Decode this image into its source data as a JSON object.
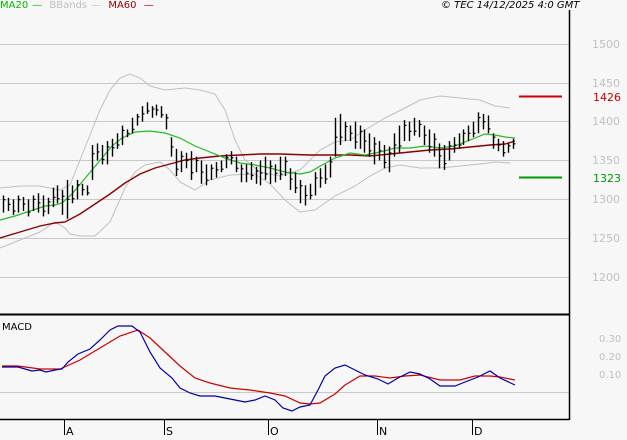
{
  "legend": [
    {
      "label": "MA20",
      "color": "#00bb00"
    },
    {
      "label": "BBands",
      "color": "#c0c0c0"
    },
    {
      "label": "MA60",
      "color": "#990000"
    }
  ],
  "copyright": "© TEC 14/12/2025 4:0 GMT",
  "colors": {
    "background": "#f7f7f7",
    "grid": "#c8c8c8",
    "bars": "#000000",
    "ma20": "#22bb22",
    "ma60": "#8b0000",
    "bbands": "#c0c0c0",
    "resistance": "#cc0000",
    "support": "#009900",
    "macd": "#0000aa",
    "signal": "#cc0000"
  },
  "price_axis": {
    "ticks": [
      "1500",
      "1450",
      "1400",
      "1350",
      "1300",
      "1250",
      "1200"
    ]
  },
  "levels": {
    "resistance": {
      "label": "1426",
      "value": 1426
    },
    "support": {
      "label": "1323",
      "value": 1323
    }
  },
  "macd_panel": {
    "title": "MACD",
    "ticks": [
      "0.30",
      "0.20",
      "0.10"
    ]
  },
  "x_axis": {
    "months": [
      "A",
      "S",
      "O",
      "N",
      "D"
    ]
  },
  "chart_data": {
    "type": "ohlc",
    "title": "",
    "xlabel": "",
    "ylabel": "",
    "ylim": [
      1165,
      1525
    ],
    "x_tick_labels": [
      "A",
      "S",
      "O",
      "N",
      "D"
    ],
    "legend": [
      "MA20",
      "BBands",
      "MA60"
    ],
    "horizontal_levels": [
      {
        "name": "resistance",
        "value": 1426
      },
      {
        "name": "support",
        "value": 1323
      }
    ],
    "bars_high_low": [
      [
        1305,
        1283
      ],
      [
        1302,
        1285
      ],
      [
        1300,
        1280
      ],
      [
        1305,
        1283
      ],
      [
        1303,
        1285
      ],
      [
        1300,
        1278
      ],
      [
        1305,
        1285
      ],
      [
        1308,
        1283
      ],
      [
        1305,
        1278
      ],
      [
        1302,
        1281
      ],
      [
        1315,
        1290
      ],
      [
        1318,
        1295
      ],
      [
        1312,
        1280
      ],
      [
        1325,
        1275
      ],
      [
        1318,
        1295
      ],
      [
        1325,
        1300
      ],
      [
        1320,
        1305
      ],
      [
        1318,
        1305
      ],
      [
        1370,
        1325
      ],
      [
        1372,
        1350
      ],
      [
        1370,
        1345
      ],
      [
        1375,
        1345
      ],
      [
        1378,
        1355
      ],
      [
        1385,
        1365
      ],
      [
        1395,
        1370
      ],
      [
        1390,
        1380
      ],
      [
        1405,
        1385
      ],
      [
        1410,
        1395
      ],
      [
        1420,
        1400
      ],
      [
        1425,
        1410
      ],
      [
        1420,
        1405
      ],
      [
        1422,
        1408
      ],
      [
        1420,
        1405
      ],
      [
        1410,
        1390
      ],
      [
        1380,
        1355
      ],
      [
        1365,
        1330
      ],
      [
        1362,
        1335
      ],
      [
        1360,
        1340
      ],
      [
        1362,
        1325
      ],
      [
        1355,
        1335
      ],
      [
        1350,
        1320
      ],
      [
        1345,
        1318
      ],
      [
        1345,
        1325
      ],
      [
        1348,
        1328
      ],
      [
        1350,
        1335
      ],
      [
        1358,
        1340
      ],
      [
        1362,
        1345
      ],
      [
        1355,
        1335
      ],
      [
        1345,
        1322
      ],
      [
        1345,
        1322
      ],
      [
        1348,
        1325
      ],
      [
        1342,
        1320
      ],
      [
        1350,
        1318
      ],
      [
        1355,
        1325
      ],
      [
        1350,
        1320
      ],
      [
        1345,
        1322
      ],
      [
        1355,
        1325
      ],
      [
        1355,
        1330
      ],
      [
        1340,
        1312
      ],
      [
        1335,
        1308
      ],
      [
        1325,
        1295
      ],
      [
        1318,
        1292
      ],
      [
        1320,
        1300
      ],
      [
        1335,
        1305
      ],
      [
        1340,
        1315
      ],
      [
        1345,
        1320
      ],
      [
        1355,
        1328
      ],
      [
        1405,
        1355
      ],
      [
        1410,
        1370
      ],
      [
        1400,
        1375
      ],
      [
        1395,
        1375
      ],
      [
        1400,
        1365
      ],
      [
        1395,
        1365
      ],
      [
        1390,
        1360
      ],
      [
        1385,
        1355
      ],
      [
        1380,
        1345
      ],
      [
        1375,
        1350
      ],
      [
        1370,
        1340
      ],
      [
        1368,
        1335
      ],
      [
        1385,
        1355
      ],
      [
        1395,
        1360
      ],
      [
        1402,
        1375
      ],
      [
        1400,
        1375
      ],
      [
        1405,
        1382
      ],
      [
        1402,
        1380
      ],
      [
        1395,
        1370
      ],
      [
        1390,
        1360
      ],
      [
        1385,
        1355
      ],
      [
        1372,
        1340
      ],
      [
        1370,
        1338
      ],
      [
        1375,
        1350
      ],
      [
        1380,
        1360
      ],
      [
        1385,
        1365
      ],
      [
        1390,
        1370
      ],
      [
        1395,
        1375
      ],
      [
        1400,
        1380
      ],
      [
        1412,
        1385
      ],
      [
        1410,
        1390
      ],
      [
        1408,
        1385
      ],
      [
        1385,
        1365
      ],
      [
        1378,
        1362
      ],
      [
        1375,
        1355
      ],
      [
        1372,
        1360
      ],
      [
        1378,
        1365
      ]
    ],
    "ma20_approx": [
      [
        0,
        1300
      ],
      [
        60,
        1317
      ],
      [
        100,
        1362
      ],
      [
        150,
        1392
      ],
      [
        200,
        1372
      ],
      [
        240,
        1345
      ],
      [
        280,
        1330
      ],
      [
        320,
        1340
      ],
      [
        380,
        1350
      ],
      [
        420,
        1360
      ],
      [
        470,
        1372
      ],
      [
        510,
        1378
      ]
    ],
    "ma60_approx": [
      [
        0,
        1250
      ],
      [
        60,
        1272
      ],
      [
        100,
        1297
      ],
      [
        150,
        1340
      ],
      [
        200,
        1350
      ],
      [
        260,
        1362
      ],
      [
        320,
        1362
      ],
      [
        380,
        1358
      ],
      [
        440,
        1362
      ],
      [
        510,
        1372
      ]
    ],
    "macd_approx": {
      "description": "MACD rises from ~0 to peak ~0.32 in late Aug, falls to below zero in Sep–Oct, recovers to ~0.15 in Oct–Dec"
    }
  }
}
